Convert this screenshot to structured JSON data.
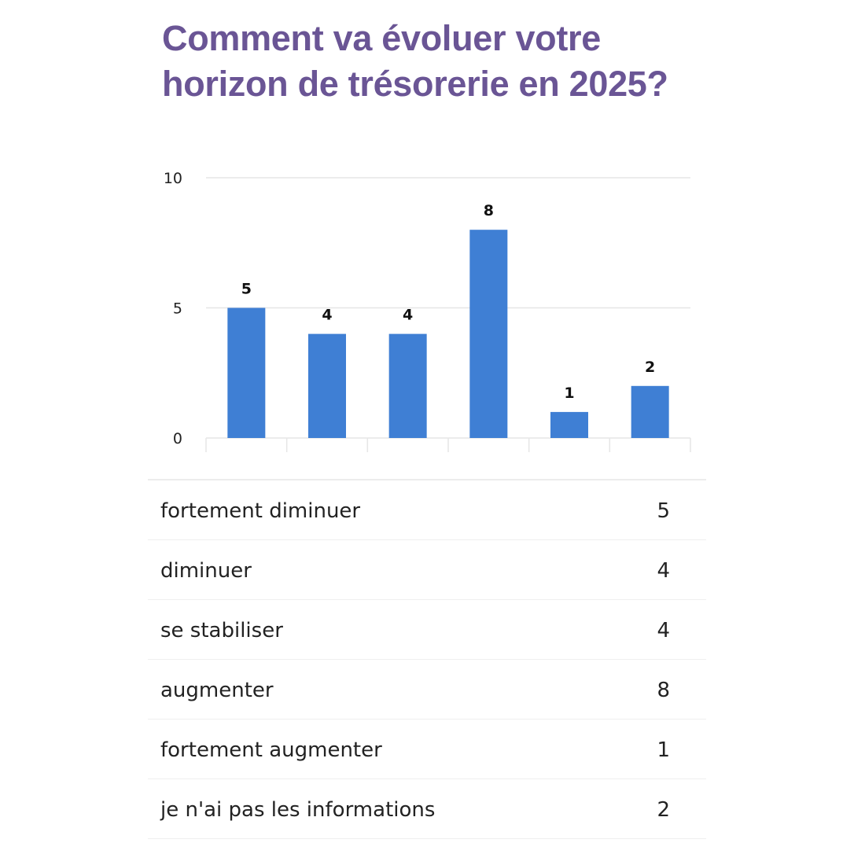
{
  "colors": {
    "title": "#6a5595",
    "bar": "#3f7fd4",
    "grid": "#e6e6e6",
    "axis_text": "#222222",
    "data_label": "#111111"
  },
  "chart_data": {
    "type": "bar",
    "title": "Comment va évoluer votre horizon de trésorerie en 2025?",
    "categories": [
      "fortement diminuer",
      "diminuer",
      "se stabiliser",
      "augmenter",
      "fortement augmenter",
      "je n'ai pas les informations"
    ],
    "values": [
      5,
      4,
      4,
      8,
      1,
      2
    ],
    "xlabel": "",
    "ylabel": "",
    "ylim": [
      0,
      10
    ],
    "yticks": [
      0,
      5,
      10
    ],
    "grid": true,
    "data_labels": true
  },
  "table": {
    "rows": [
      {
        "label": "fortement diminuer",
        "value": "5"
      },
      {
        "label": "diminuer",
        "value": "4"
      },
      {
        "label": "se stabiliser",
        "value": "4"
      },
      {
        "label": "augmenter",
        "value": "8"
      },
      {
        "label": "fortement augmenter",
        "value": "1"
      },
      {
        "label": "je n'ai pas les informations",
        "value": "2"
      }
    ]
  }
}
